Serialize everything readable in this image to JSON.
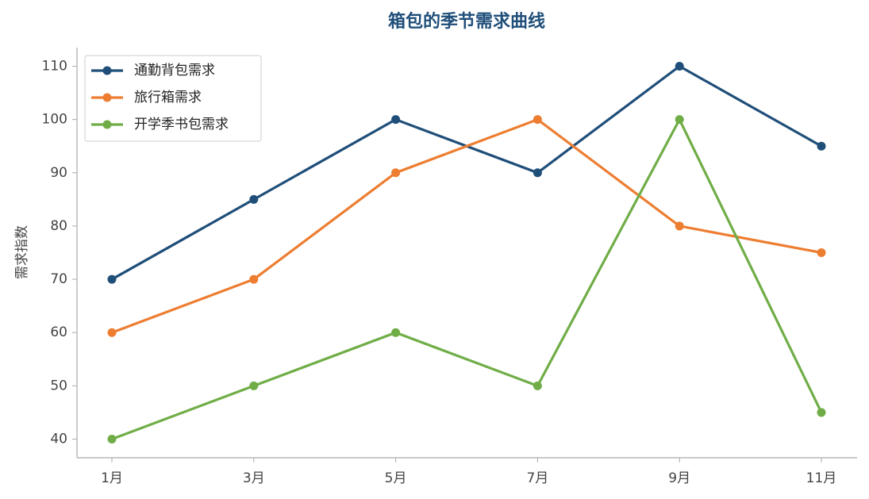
{
  "chart_data": {
    "type": "line",
    "title": "箱包的季节需求曲线",
    "y_label": "需求指数",
    "categories": [
      "1月",
      "3月",
      "5月",
      "7月",
      "9月",
      "11月"
    ],
    "series": [
      {
        "name": "通勤背包需求",
        "color": "#1f4e79",
        "values": [
          70,
          85,
          100,
          90,
          110,
          95
        ]
      },
      {
        "name": "旅行箱需求",
        "color": "#ed7d31",
        "values": [
          60,
          70,
          90,
          100,
          80,
          75
        ]
      },
      {
        "name": "开学季书包需求",
        "color": "#70ad47",
        "values": [
          40,
          50,
          60,
          50,
          100,
          45
        ]
      }
    ],
    "ylim": [
      36.5,
      113.5
    ],
    "yticks": [
      40,
      50,
      60,
      70,
      80,
      90,
      100,
      110
    ],
    "grid": false,
    "legend": "upper-left"
  }
}
